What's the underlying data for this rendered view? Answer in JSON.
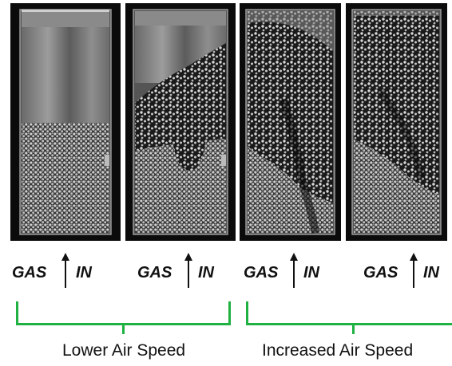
{
  "panels": [
    {
      "name": "panel-1"
    },
    {
      "name": "panel-2"
    },
    {
      "name": "panel-3"
    },
    {
      "name": "panel-4"
    }
  ],
  "gas_labels": [
    {
      "gas": "GAS",
      "in": "IN"
    },
    {
      "gas": "GAS",
      "in": "IN"
    },
    {
      "gas": "GAS",
      "in": "IN"
    },
    {
      "gas": "GAS",
      "in": "IN"
    }
  ],
  "groups": [
    {
      "caption": "Lower Air Speed"
    },
    {
      "caption": "Increased Air Speed"
    }
  ],
  "colors": {
    "bracket": "#1fb141",
    "panel_bg": "#0b0b0b",
    "particles": "#d9d9d9"
  }
}
